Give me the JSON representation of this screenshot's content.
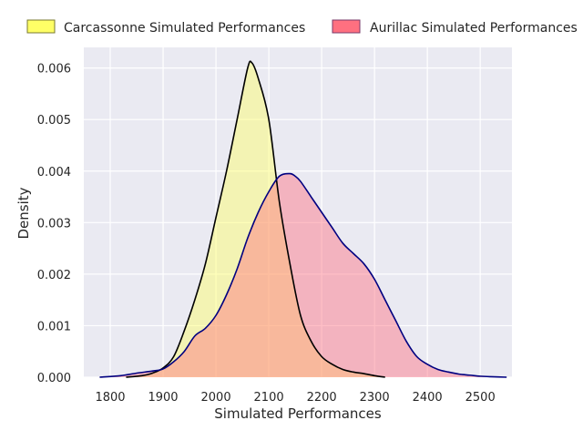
{
  "chart_data": {
    "type": "area",
    "title": "",
    "xlabel": "Simulated Performances",
    "ylabel": "Density",
    "xlim": [
      1750,
      2560
    ],
    "ylim": [
      0,
      0.0064
    ],
    "x_ticks": [
      1800,
      1900,
      2000,
      2100,
      2200,
      2300,
      2400,
      2500
    ],
    "x_tick_labels": [
      "1800",
      "1900",
      "2000",
      "2100",
      "2200",
      "2300",
      "2400",
      "2500"
    ],
    "y_ticks": [
      0,
      0.001,
      0.002,
      0.003,
      0.004,
      0.005,
      0.006
    ],
    "y_tick_labels": [
      "0.000",
      "0.001",
      "0.002",
      "0.003",
      "0.004",
      "0.005",
      "0.006"
    ],
    "grid": true,
    "legend_position": "top",
    "background_color": "#eaeaf2",
    "series": [
      {
        "name": "Carcassonne Simulated Performances",
        "fill_color": "#ffff66",
        "line_color": "#000000",
        "fill_opacity": 0.45,
        "x": [
          1830,
          1860,
          1880,
          1900,
          1920,
          1940,
          1960,
          1980,
          2000,
          2020,
          2040,
          2060,
          2068,
          2080,
          2100,
          2120,
          2140,
          2160,
          2180,
          2200,
          2220,
          2240,
          2260,
          2280,
          2300,
          2320
        ],
        "y": [
          0.0,
          3e-05,
          8e-05,
          0.00018,
          0.0004,
          0.0009,
          0.0015,
          0.0022,
          0.0031,
          0.004,
          0.005,
          0.006,
          0.0061,
          0.0058,
          0.005,
          0.0034,
          0.0022,
          0.0012,
          0.0007,
          0.0004,
          0.00025,
          0.00015,
          0.0001,
          7e-05,
          3e-05,
          0.0
        ]
      },
      {
        "name": "Aurillac Simulated Performances",
        "fill_color": "#ff7080",
        "line_color": "#000080",
        "fill_opacity": 0.45,
        "x": [
          1780,
          1820,
          1850,
          1880,
          1900,
          1920,
          1940,
          1960,
          1980,
          2000,
          2020,
          2040,
          2060,
          2080,
          2100,
          2120,
          2140,
          2150,
          2160,
          2180,
          2200,
          2220,
          2240,
          2260,
          2280,
          2300,
          2320,
          2340,
          2360,
          2380,
          2400,
          2420,
          2440,
          2460,
          2480,
          2500,
          2520,
          2550
        ],
        "y": [
          0.0,
          3e-05,
          8e-05,
          0.00012,
          0.00016,
          0.0003,
          0.0005,
          0.0008,
          0.00095,
          0.0012,
          0.0016,
          0.0021,
          0.0027,
          0.0032,
          0.0036,
          0.0039,
          0.00395,
          0.0039,
          0.0038,
          0.0035,
          0.0032,
          0.0029,
          0.0026,
          0.0024,
          0.0022,
          0.0019,
          0.0015,
          0.0011,
          0.0007,
          0.0004,
          0.00025,
          0.00015,
          0.0001,
          6e-05,
          4e-05,
          2e-05,
          1e-05,
          0.0
        ]
      }
    ]
  }
}
